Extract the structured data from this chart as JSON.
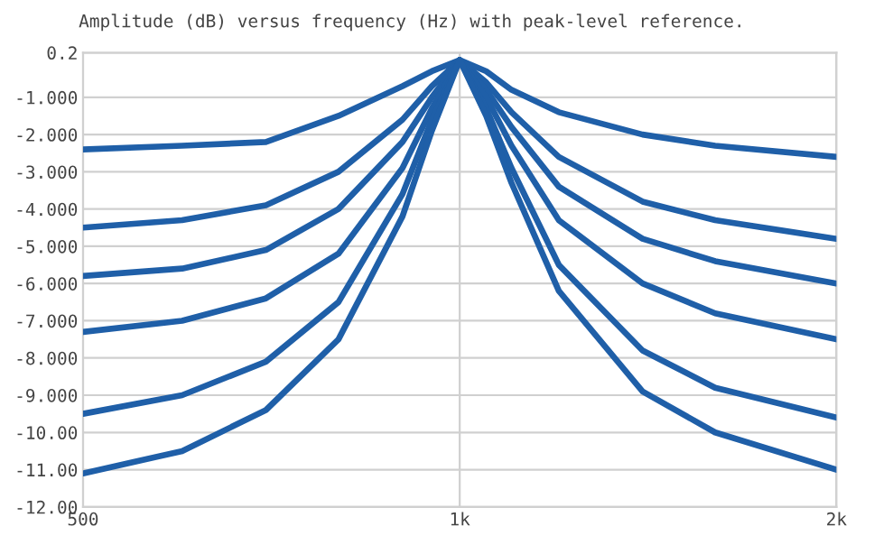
{
  "chart_data": {
    "type": "line",
    "title": "Amplitude (dB) versus frequency (Hz) with peak-level reference.",
    "x": [
      500,
      600,
      700,
      800,
      900,
      950,
      1000,
      1050,
      1100,
      1200,
      1400,
      1600,
      2000
    ],
    "series": [
      {
        "color": "#1f5fa8",
        "values": [
          -2.4,
          -2.3,
          -2.2,
          -1.5,
          -0.7,
          -0.3,
          0,
          -0.3,
          -0.8,
          -1.4,
          -2.0,
          -2.3,
          -2.6
        ]
      },
      {
        "color": "#1f5fa8",
        "values": [
          -4.5,
          -4.3,
          -3.9,
          -3.0,
          -1.6,
          -0.7,
          0,
          -0.6,
          -1.4,
          -2.6,
          -3.8,
          -4.3,
          -4.8
        ]
      },
      {
        "color": "#1f5fa8",
        "values": [
          -5.8,
          -5.6,
          -5.1,
          -4.0,
          -2.2,
          -1.0,
          0,
          -0.8,
          -1.8,
          -3.4,
          -4.8,
          -5.4,
          -6.0
        ]
      },
      {
        "color": "#1f5fa8",
        "values": [
          -7.3,
          -7.0,
          -6.4,
          -5.2,
          -2.9,
          -1.3,
          0,
          -1.0,
          -2.3,
          -4.3,
          -6.0,
          -6.8,
          -7.5
        ]
      },
      {
        "color": "#1f5fa8",
        "values": [
          -9.5,
          -9.0,
          -8.1,
          -6.5,
          -3.6,
          -1.6,
          0,
          -1.3,
          -2.9,
          -5.5,
          -7.8,
          -8.8,
          -9.6
        ]
      },
      {
        "color": "#1f5fa8",
        "values": [
          -11.1,
          -10.5,
          -9.4,
          -7.5,
          -4.2,
          -1.9,
          0,
          -1.5,
          -3.3,
          -6.2,
          -8.9,
          -10.0,
          -11.0
        ]
      }
    ],
    "log": "x",
    "xlim": [
      500,
      2000
    ],
    "xticks": [
      500,
      {
        "value": 1000,
        "label": "1k"
      },
      {
        "value": 2000,
        "label": "2k"
      }
    ],
    "ylim": [
      -12,
      0.2
    ],
    "yticks": [
      {
        "value": 0.2,
        "label": "0.2"
      },
      {
        "value": -1,
        "label": "-1.000"
      },
      {
        "value": -2,
        "label": "-2.000"
      },
      {
        "value": -3,
        "label": "-3.000"
      },
      {
        "value": -4,
        "label": "-4.000"
      },
      {
        "value": -5,
        "label": "-5.000"
      },
      {
        "value": -6,
        "label": "-6.000"
      },
      {
        "value": -7,
        "label": "-7.000"
      },
      {
        "value": -8,
        "label": "-8.000"
      },
      {
        "value": -9,
        "label": "-9.000"
      },
      {
        "value": -10,
        "label": "-10.00"
      },
      {
        "value": -11,
        "label": "-11.00"
      },
      {
        "value": -12,
        "label": "-12.00"
      }
    ],
    "grid": true,
    "marker": "none",
    "line_style": "solid"
  }
}
